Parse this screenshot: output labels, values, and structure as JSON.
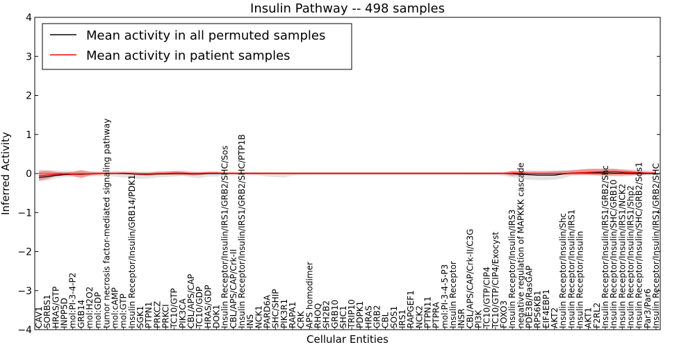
{
  "chart_data": {
    "type": "line",
    "title": "Insulin Pathway -- 498 samples",
    "xlabel": "Cellular Entities",
    "ylabel": "Inferred Activity",
    "ylim": [
      -4,
      4
    ],
    "yticks": [
      4,
      3,
      2,
      1,
      0,
      -1,
      -2,
      -3,
      -4
    ],
    "ytick_labels": [
      "4",
      "3",
      "2",
      "1",
      "0",
      "−1",
      "−2",
      "−3",
      "−4"
    ],
    "legend_position": "top-left",
    "legend": [
      {
        "label": "Mean activity in all permuted samples",
        "color": "#000000"
      },
      {
        "label": "Mean activity in patient samples",
        "color": "#ff0000"
      }
    ],
    "categories": [
      "CAV1",
      "SORBS1",
      "HRAS/GTP",
      "INPP5D",
      "mol:PI-3-4-P2",
      "GRB14",
      "mol:H2O2",
      "mol:GDP",
      "tumor necrosis factor-mediated signaling pathway",
      "mol:cAMP",
      "mol:GTP",
      "Insulin Receptor/Insulin/GRB14/PDK1",
      "SGK1",
      "PTPN1",
      "PRKCZ",
      "PRKCI",
      "TC10/GTP",
      "PIK3CA",
      "CBL/APS/CAP",
      "TC10/GDP",
      "HRAS/GDP",
      "DOK1",
      "Insulin Receptor/Insulin/IRS1/GRB2/SHC/Sos",
      "CBL/APS/CAP/Crk-II",
      "Insulin Receptor/Insulin/IRS1/GRB2/SHC/PTP1B",
      "INS",
      "NCK1",
      "PARD6A",
      "SHC/SHIP",
      "PIK3R1",
      "RAPA1",
      "CRK",
      "APS homodimer",
      "RHOQ",
      "SH2B2",
      "GRB10",
      "SHC1",
      "TRIP10",
      "PDPK1",
      "HRAS",
      "GRB2",
      "CBL",
      "SOS1",
      "IRS1",
      "RAPGEF1",
      "NCK2",
      "PTPN11",
      "PTPRA",
      "mol:PI-3-4-5-P3",
      "Insulin Receptor",
      "INSR",
      "CBL/APS/CAP/Crk-II/C3G",
      "PI3K",
      "TC10/GTP/CIP4",
      "TC10/GTP/CIP4/Exocyst",
      "FOXO3",
      "Insulin Receptor/Insulin/IRS3",
      "negative regulation of MAPKKK cascade",
      "PDE3B/RasGAP",
      "RPS6KB1",
      "EIF4EBP1",
      "AKT2",
      "Insulin Receptor/Insulin/Shc",
      "Insulin Receptor/Insulin/IRS1",
      "Insulin Receptor/Insulin",
      "AKT1",
      "F2RL2",
      "Insulin Receptor/Insulin/IRS1/GRB2/Shc",
      "Insulin Receptor/Insulin/SHC/GRB10",
      "Insulin Receptor/Insulin/IRS1/NCK2",
      "Insulin Receptor/Insulin/IRS1/Shp2",
      "Insulin Receptor/Insulin/SHC/GRB2/Sos1",
      "Par3/Par6",
      "Insulin Receptor/Insulin/IRS1/GRB2/SHC"
    ],
    "series": [
      {
        "name": "Mean activity in all permuted samples",
        "color": "#000000",
        "values": [
          -0.1,
          -0.08,
          -0.05,
          -0.03,
          -0.02,
          -0.02,
          -0.01,
          0,
          0,
          0,
          0,
          -0.01,
          -0.02,
          -0.02,
          -0.01,
          -0.01,
          0,
          0,
          -0.01,
          -0.01,
          0,
          0,
          0,
          0,
          0,
          0,
          0,
          0,
          0,
          0,
          0,
          0,
          0,
          0,
          0,
          0,
          0,
          0,
          0,
          0,
          0,
          0,
          0,
          0,
          0,
          0,
          0,
          0,
          0,
          0,
          0,
          0,
          0,
          0,
          0,
          0,
          0,
          -0.02,
          -0.03,
          -0.04,
          -0.04,
          -0.04,
          -0.01,
          0.01,
          0.02,
          0.02,
          0.02,
          0.02,
          0.01,
          0.01,
          0,
          0,
          0,
          0
        ],
        "band": {
          "lower": [
            -0.2,
            -0.18,
            -0.12,
            -0.1,
            -0.09,
            -0.08,
            -0.08,
            -0.07,
            -0.07,
            -0.08,
            -0.1,
            -0.12,
            -0.14,
            -0.13,
            -0.1,
            -0.09,
            -0.08,
            -0.06,
            -0.1,
            -0.12,
            -0.08,
            -0.08,
            -0.05,
            -0.04,
            -0.04,
            -0.03,
            -0.05,
            -0.08,
            -0.09,
            -0.1,
            -0.06,
            -0.04,
            -0.03,
            -0.03,
            -0.03,
            -0.03,
            -0.03,
            -0.03,
            -0.03,
            -0.03,
            -0.03,
            -0.03,
            -0.03,
            -0.03,
            -0.03,
            -0.03,
            -0.03,
            -0.03,
            -0.03,
            -0.03,
            -0.03,
            -0.04,
            -0.04,
            -0.04,
            -0.04,
            -0.06,
            -0.1,
            -0.14,
            -0.16,
            -0.17,
            -0.17,
            -0.16,
            -0.12,
            -0.06,
            -0.05,
            -0.05,
            -0.06,
            -0.07,
            -0.08,
            -0.08,
            -0.07,
            -0.06,
            -0.05,
            -0.05
          ],
          "upper": [
            0.1,
            0.09,
            0.08,
            0.07,
            0.07,
            0.06,
            0.06,
            0.06,
            0.06,
            0.07,
            0.07,
            0.06,
            0.05,
            0.05,
            0.06,
            0.06,
            0.07,
            0.08,
            0.06,
            0.05,
            0.06,
            0.06,
            0.05,
            0.04,
            0.04,
            0.04,
            0.04,
            0.04,
            0.03,
            0.03,
            0.03,
            0.03,
            0.03,
            0.03,
            0.03,
            0.03,
            0.03,
            0.03,
            0.03,
            0.03,
            0.03,
            0.03,
            0.03,
            0.03,
            0.03,
            0.03,
            0.03,
            0.03,
            0.03,
            0.03,
            0.03,
            0.03,
            0.03,
            0.03,
            0.03,
            0.04,
            0.06,
            0.07,
            0.08,
            0.08,
            0.08,
            0.08,
            0.08,
            0.09,
            0.1,
            0.11,
            0.12,
            0.12,
            0.12,
            0.11,
            0.1,
            0.09,
            0.08,
            0.08
          ]
        }
      },
      {
        "name": "Mean activity in patient samples",
        "color": "#ff0000",
        "values": [
          -0.06,
          -0.04,
          -0.02,
          -0.01,
          -0.02,
          -0.01,
          -0.01,
          0,
          0,
          0,
          0.01,
          0,
          -0.01,
          -0.01,
          0,
          0,
          0.01,
          0.01,
          0,
          0,
          0.01,
          0.01,
          0,
          0,
          0,
          0,
          0,
          0,
          0,
          0,
          0,
          0,
          0,
          0,
          0,
          0,
          0,
          0,
          0,
          0,
          0,
          0,
          0,
          0,
          0,
          0,
          0,
          0,
          0,
          0,
          0,
          0,
          0,
          0,
          0,
          0,
          0.01,
          0.01,
          0,
          0,
          0,
          0,
          0,
          0.01,
          0.02,
          0.03,
          0.04,
          0.05,
          0.05,
          0.04,
          0.03,
          0.02,
          0.01,
          0.01
        ],
        "band": {
          "lower": [
            -0.18,
            -0.14,
            -0.06,
            -0.04,
            -0.06,
            -0.12,
            -0.05,
            -0.03,
            -0.02,
            -0.02,
            -0.02,
            -0.03,
            -0.05,
            -0.06,
            -0.04,
            -0.03,
            -0.04,
            -0.04,
            -0.05,
            -0.04,
            -0.02,
            -0.02,
            -0.02,
            -0.02,
            -0.02,
            -0.02,
            -0.02,
            -0.02,
            -0.02,
            -0.02,
            -0.02,
            -0.02,
            -0.02,
            -0.02,
            -0.02,
            -0.02,
            -0.02,
            -0.02,
            -0.02,
            -0.02,
            -0.02,
            -0.02,
            -0.02,
            -0.02,
            -0.02,
            -0.02,
            -0.02,
            -0.02,
            -0.02,
            -0.02,
            -0.02,
            -0.02,
            -0.02,
            -0.02,
            -0.02,
            -0.02,
            -0.06,
            -0.04,
            -0.02,
            -0.02,
            -0.02,
            -0.02,
            -0.03,
            -0.03,
            -0.03,
            -0.03,
            -0.04,
            -0.05,
            -0.05,
            -0.05,
            -0.04,
            -0.03,
            -0.02,
            -0.02
          ],
          "upper": [
            0.06,
            0.07,
            0.04,
            0.03,
            0.04,
            0.09,
            0.04,
            0.03,
            0.03,
            0.03,
            0.03,
            0.03,
            0.02,
            0.02,
            0.04,
            0.05,
            0.06,
            0.05,
            0.03,
            0.03,
            0.04,
            0.04,
            0.03,
            0.03,
            0.03,
            0.03,
            0.03,
            0.03,
            0.03,
            0.03,
            0.03,
            0.03,
            0.03,
            0.03,
            0.03,
            0.03,
            0.03,
            0.03,
            0.03,
            0.03,
            0.03,
            0.03,
            0.03,
            0.03,
            0.03,
            0.03,
            0.03,
            0.03,
            0.03,
            0.03,
            0.03,
            0.03,
            0.03,
            0.03,
            0.03,
            0.03,
            0.07,
            0.06,
            0.05,
            0.05,
            0.05,
            0.06,
            0.07,
            0.08,
            0.1,
            0.12,
            0.12,
            0.12,
            0.12,
            0.1,
            0.08,
            0.06,
            0.04,
            0.04
          ]
        }
      }
    ]
  }
}
